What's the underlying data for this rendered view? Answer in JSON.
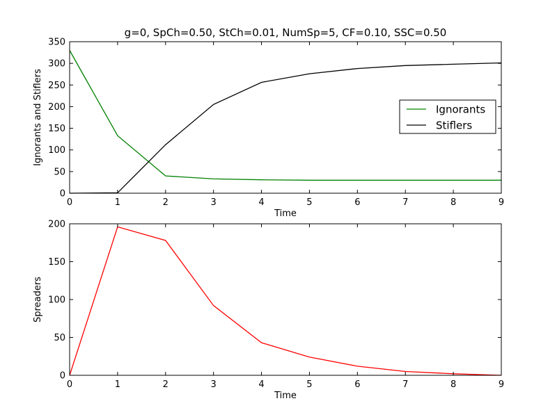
{
  "figure_title": "g=0, SpCh=0.50, StCh=0.01, NumSp=5, CF=0.10, SSC=0.50",
  "chart_data": [
    {
      "type": "line",
      "title": "g=0, SpCh=0.50, StCh=0.01, NumSp=5, CF=0.10, SSC=0.50",
      "xlabel": "Time",
      "ylabel": "Ignorants and Stiflers",
      "xlim": [
        0,
        9
      ],
      "ylim": [
        0,
        350
      ],
      "xticks": [
        "0",
        "1",
        "2",
        "3",
        "4",
        "5",
        "6",
        "7",
        "8",
        "9"
      ],
      "yticks": [
        "0",
        "50",
        "100",
        "150",
        "200",
        "250",
        "300",
        "350"
      ],
      "x": [
        0,
        1,
        2,
        3,
        4,
        5,
        6,
        7,
        8,
        9
      ],
      "series": [
        {
          "name": "Ignorants",
          "color": "#008000",
          "values": [
            330,
            133,
            40,
            33,
            31,
            30,
            30,
            30,
            30,
            30
          ]
        },
        {
          "name": "Stiflers",
          "color": "#000000",
          "values": [
            0,
            1,
            112,
            205,
            256,
            276,
            288,
            295,
            298,
            301
          ]
        }
      ],
      "legend": "center-right",
      "grid": false
    },
    {
      "type": "line",
      "title": "",
      "xlabel": "Time",
      "ylabel": "Spreaders",
      "xlim": [
        0,
        9
      ],
      "ylim": [
        0,
        200
      ],
      "xticks": [
        "0",
        "1",
        "2",
        "3",
        "4",
        "5",
        "6",
        "7",
        "8",
        "9"
      ],
      "yticks": [
        "0",
        "50",
        "100",
        "150",
        "200"
      ],
      "x": [
        0,
        1,
        2,
        3,
        4,
        5,
        6,
        7,
        8,
        9
      ],
      "series": [
        {
          "color": "#ff0000",
          "values": [
            0,
            196,
            178,
            92,
            43,
            24,
            12,
            5,
            2,
            0
          ]
        }
      ],
      "grid": false
    }
  ]
}
